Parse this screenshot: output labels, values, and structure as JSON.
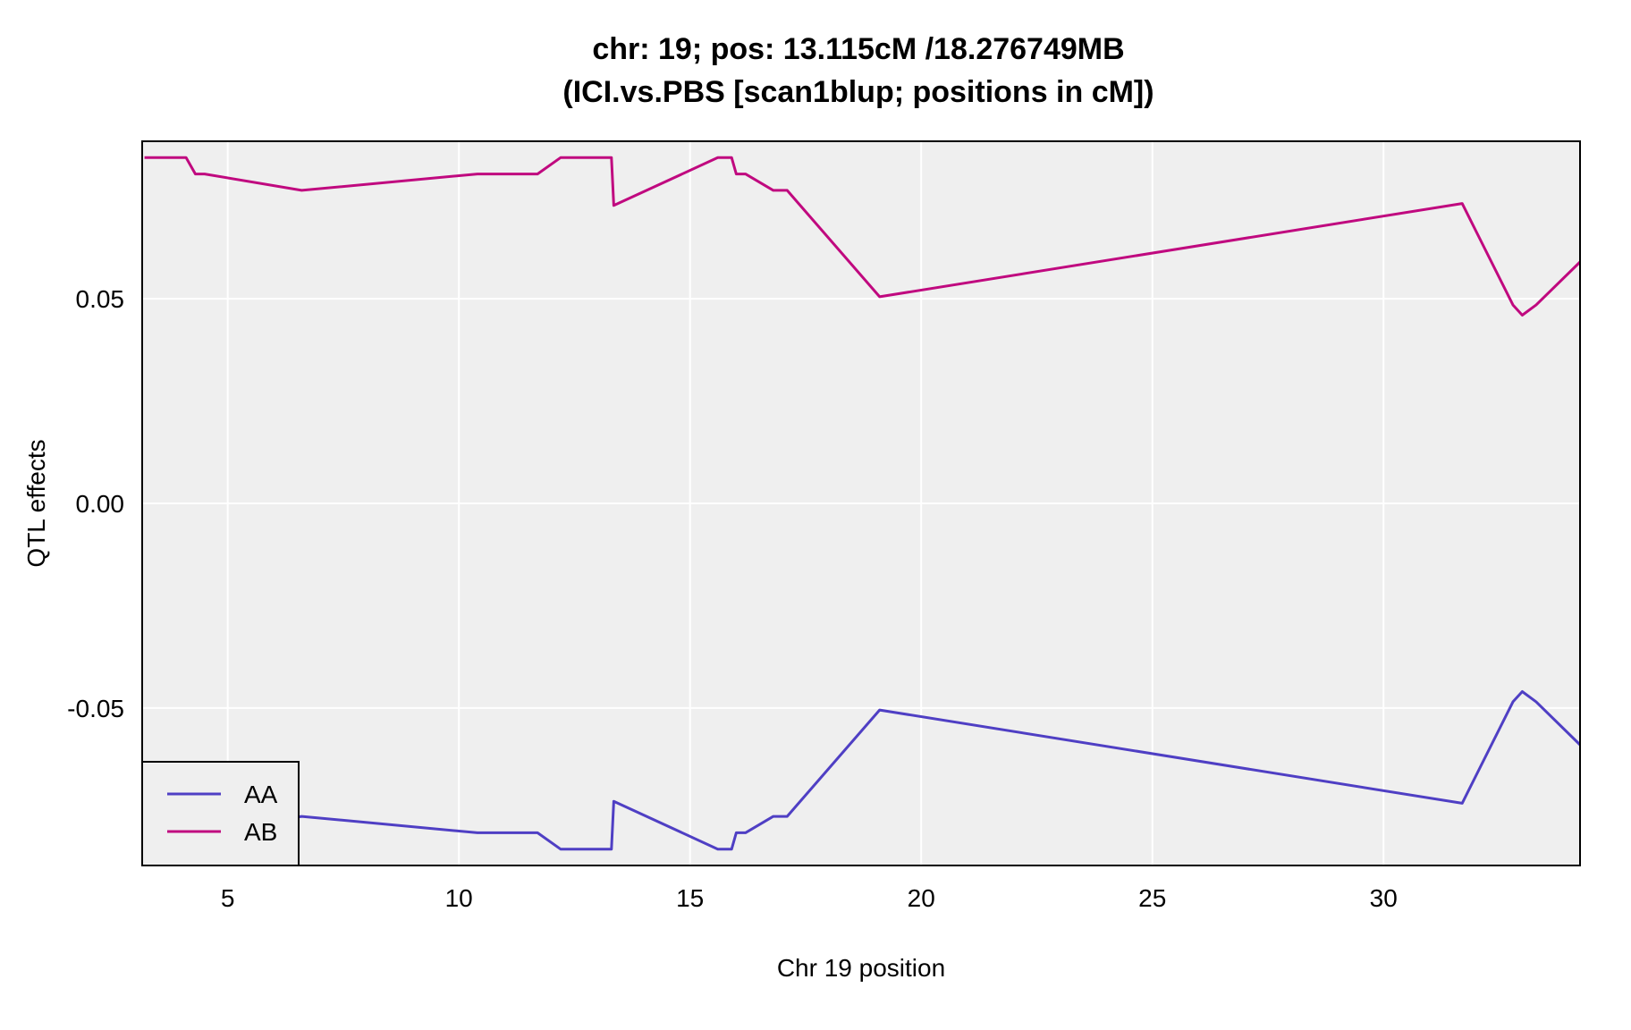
{
  "chart_data": {
    "type": "line",
    "title": "chr: 19; pos: 13.115cM /18.276749MB",
    "subtitle": "(ICI.vs.PBS [scan1blup; positions in cM])",
    "xlabel": "Chr 19 position",
    "ylabel": "QTL effects",
    "xlim": [
      3.15,
      34.25
    ],
    "ylim": [
      -0.0885,
      0.0885
    ],
    "xticks": [
      5,
      10,
      15,
      20,
      25,
      30
    ],
    "xtick_labels": [
      "5",
      "10",
      "15",
      "20",
      "25",
      "30"
    ],
    "yticks": [
      -0.05,
      0.0,
      0.05
    ],
    "ytick_labels": [
      "-0.05",
      "0.00",
      "0.05"
    ],
    "grid": true,
    "background_color": "#efefef",
    "grid_color": "#ffffff",
    "legend": {
      "position": "bottom-left",
      "entries": [
        "AA",
        "AB"
      ]
    },
    "series": [
      {
        "name": "AA",
        "color": "#4f3fc4",
        "x": [
          3.2,
          4.1,
          4.3,
          4.5,
          6.6,
          10.4,
          11.7,
          12.2,
          12.8,
          13.3,
          13.35,
          15.6,
          15.9,
          16.0,
          16.2,
          16.8,
          17.1,
          19.1,
          31.7,
          32.8,
          33.0,
          33.3,
          34.25
        ],
        "values": [
          -0.0845,
          -0.0845,
          -0.0805,
          -0.0805,
          -0.0765,
          -0.0805,
          -0.0805,
          -0.0845,
          -0.0845,
          -0.0845,
          -0.0728,
          -0.0845,
          -0.0845,
          -0.0805,
          -0.0805,
          -0.0765,
          -0.0765,
          -0.0505,
          -0.0733,
          -0.0485,
          -0.046,
          -0.0485,
          -0.059
        ]
      },
      {
        "name": "AB",
        "color": "#c0097f",
        "x": [
          3.2,
          4.1,
          4.3,
          4.5,
          6.6,
          10.4,
          11.7,
          12.2,
          12.8,
          13.3,
          13.35,
          15.6,
          15.9,
          16.0,
          16.2,
          16.8,
          17.1,
          19.1,
          31.7,
          32.8,
          33.0,
          33.3,
          34.25
        ],
        "values": [
          0.0845,
          0.0845,
          0.0805,
          0.0805,
          0.0765,
          0.0805,
          0.0805,
          0.0845,
          0.0845,
          0.0845,
          0.0728,
          0.0845,
          0.0845,
          0.0805,
          0.0805,
          0.0765,
          0.0765,
          0.0505,
          0.0733,
          0.0485,
          0.046,
          0.0485,
          0.059
        ]
      }
    ]
  }
}
